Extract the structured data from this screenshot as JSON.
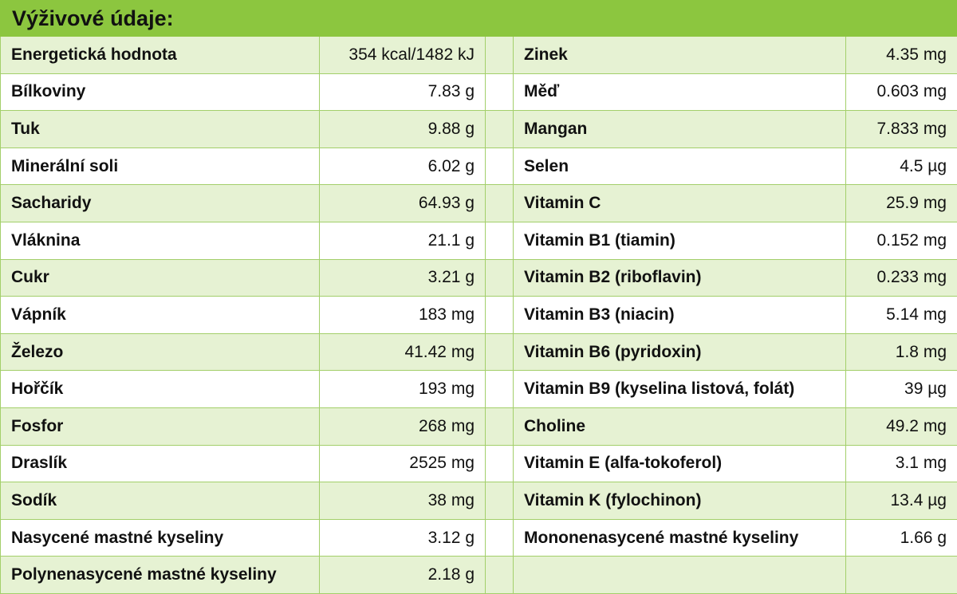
{
  "title": "Výživové údaje:",
  "rows": [
    {
      "l_name": "Energetická hodnota",
      "l_value": "354 kcal/1482 kJ",
      "r_name": "Zinek",
      "r_value": "4.35 mg"
    },
    {
      "l_name": "Bílkoviny",
      "l_value": "7.83 g",
      "r_name": "Měď",
      "r_value": "0.603 mg"
    },
    {
      "l_name": "Tuk",
      "l_value": "9.88 g",
      "r_name": "Mangan",
      "r_value": "7.833 mg"
    },
    {
      "l_name": "Minerální soli",
      "l_value": "6.02 g",
      "r_name": "Selen",
      "r_value": "4.5 µg"
    },
    {
      "l_name": "Sacharidy",
      "l_value": "64.93 g",
      "r_name": "Vitamin C",
      "r_value": "25.9 mg"
    },
    {
      "l_name": "Vláknina",
      "l_value": "21.1 g",
      "r_name": "Vitamin B1 (tiamin)",
      "r_value": "0.152 mg"
    },
    {
      "l_name": "Cukr",
      "l_value": "3.21 g",
      "r_name": "Vitamin B2 (riboflavin)",
      "r_value": "0.233 mg"
    },
    {
      "l_name": "Vápník",
      "l_value": "183 mg",
      "r_name": "Vitamin B3 (niacin)",
      "r_value": "5.14 mg"
    },
    {
      "l_name": "Železo",
      "l_value": "41.42 mg",
      "r_name": "Vitamin B6 (pyridoxin)",
      "r_value": "1.8 mg"
    },
    {
      "l_name": "Hořčík",
      "l_value": "193 mg",
      "r_name": "Vitamin B9 (kyselina listová, folát)",
      "r_value": "39 µg"
    },
    {
      "l_name": "Fosfor",
      "l_value": "268 mg",
      "r_name": "Choline",
      "r_value": "49.2 mg"
    },
    {
      "l_name": "Draslík",
      "l_value": "2525 mg",
      "r_name": "Vitamin E (alfa-tokoferol)",
      "r_value": "3.1 mg"
    },
    {
      "l_name": "Sodík",
      "l_value": "38 mg",
      "r_name": "Vitamin K (fylochinon)",
      "r_value": "13.4 µg"
    },
    {
      "l_name": "Nasycené mastné kyseliny",
      "l_value": "3.12 g",
      "r_name": "Mononenasycené mastné kyseliny",
      "r_value": "1.66 g"
    },
    {
      "l_name": "Polynenasycené mastné kyseliny",
      "l_value": "2.18 g",
      "r_name": "",
      "r_value": ""
    }
  ]
}
